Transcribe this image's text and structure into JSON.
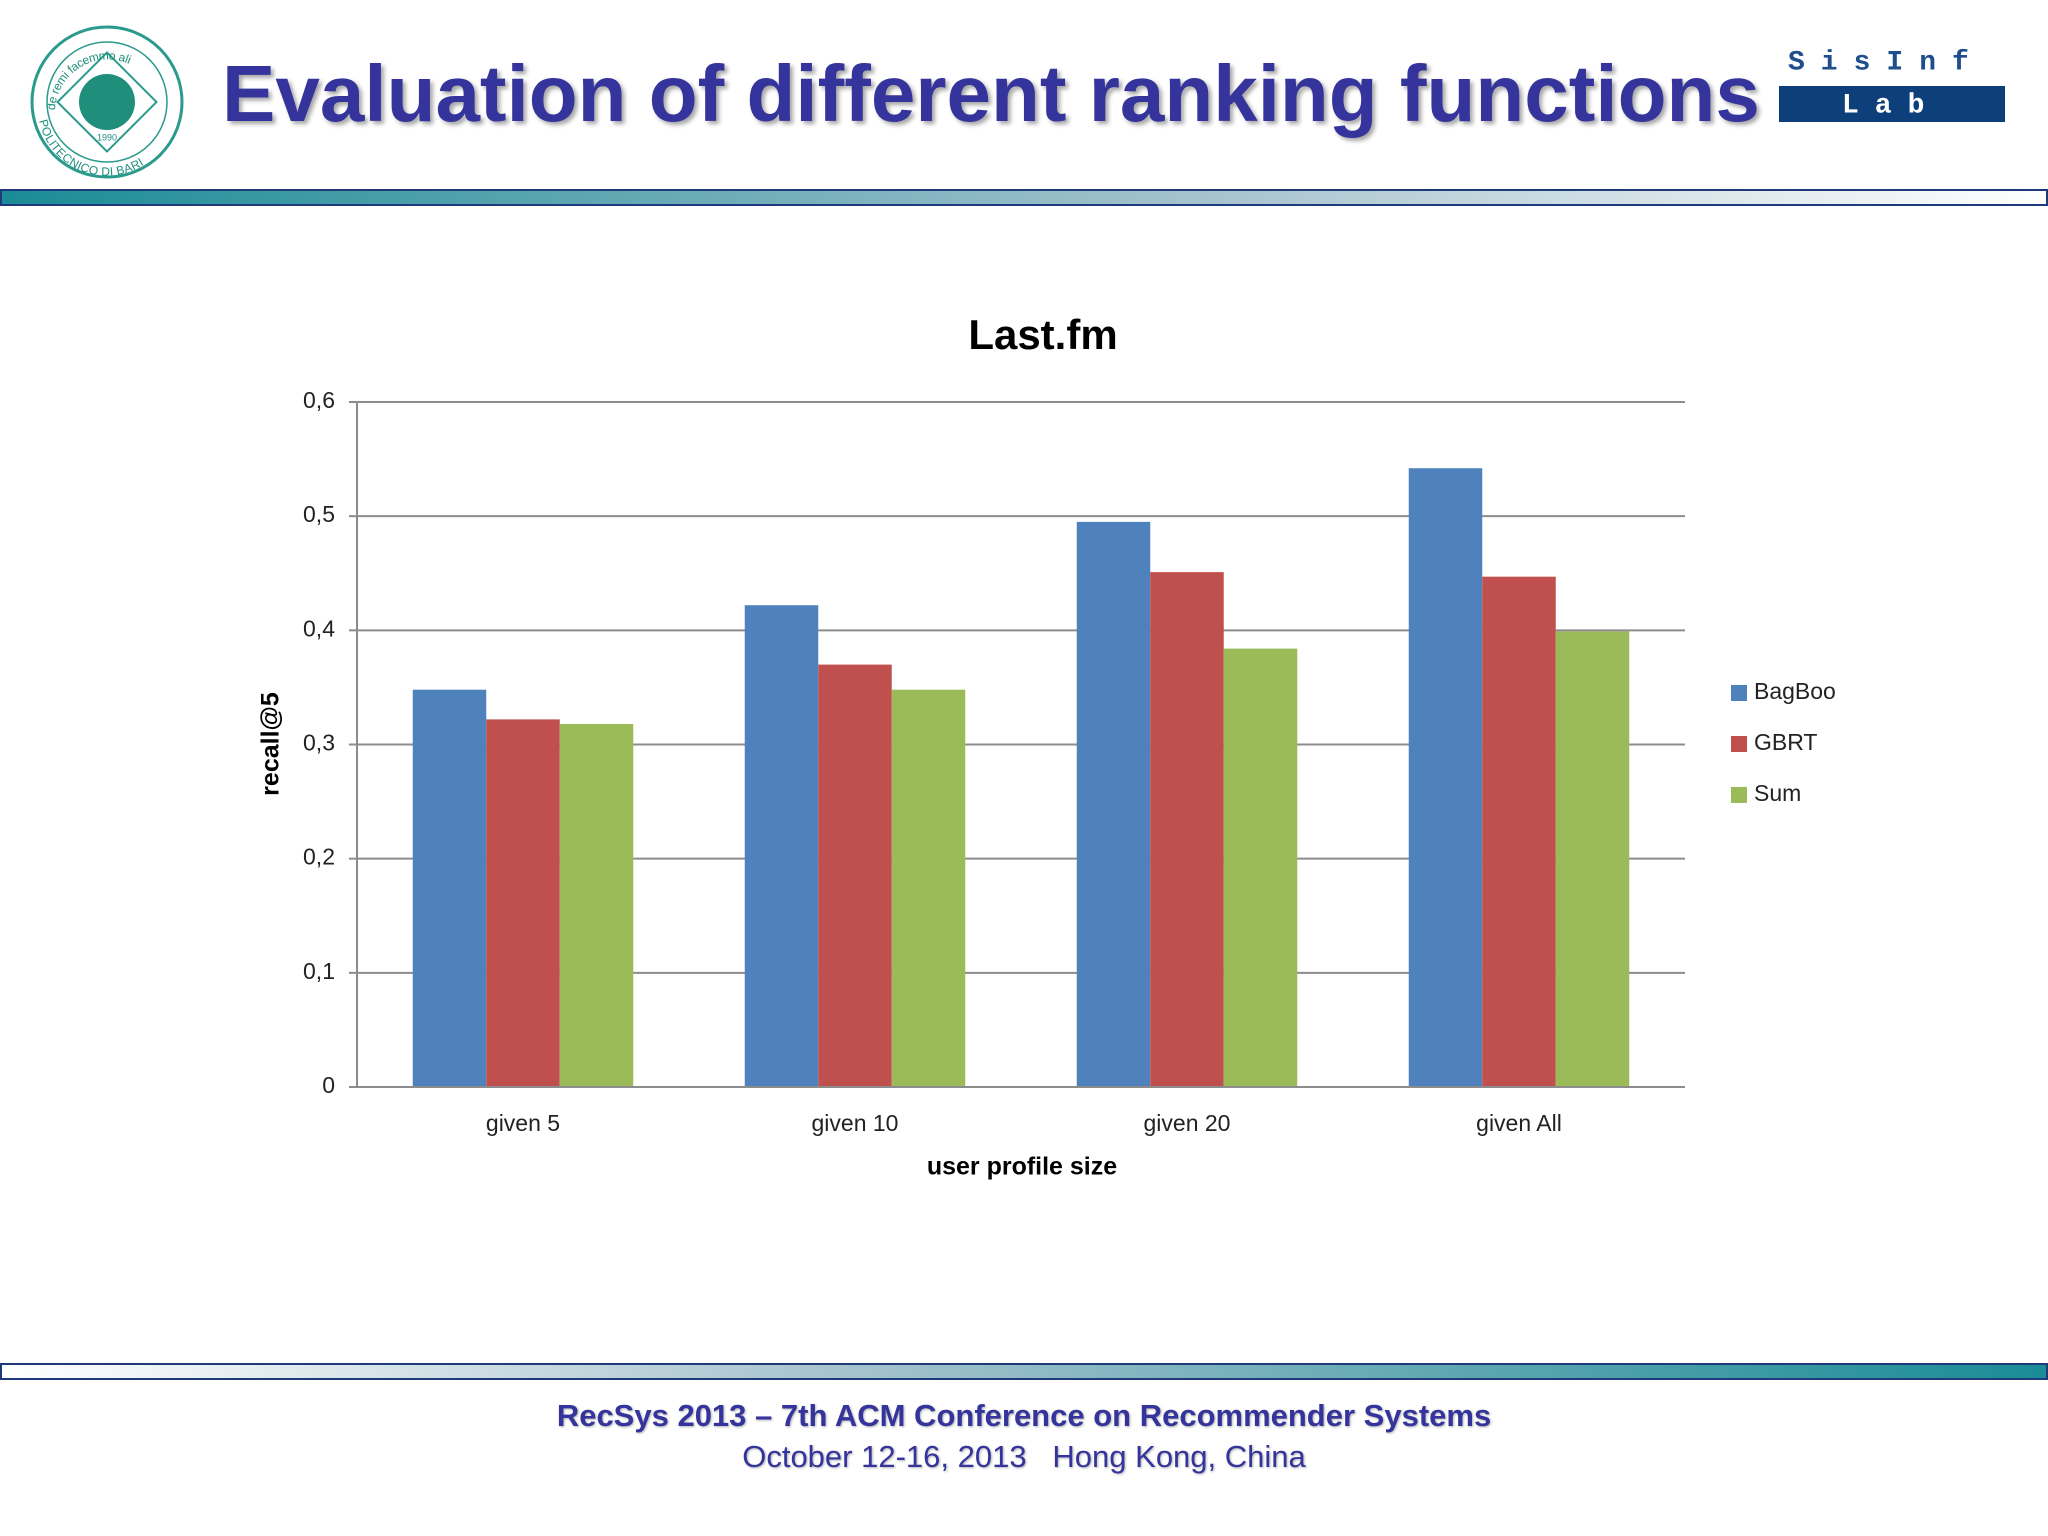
{
  "header": {
    "title": "Evaluation of different ranking functions",
    "left_logo": {
      "top_text": "de remi facemmo ali",
      "bottom_text": "POLITECNICO DI BARI",
      "year": "1990"
    },
    "right_logo": {
      "top_text": "SisInf",
      "bottom_text": "Lab"
    }
  },
  "chart_data": {
    "type": "bar",
    "title": "Last.fm",
    "x_label": "user profile size",
    "y_label": "recall@5",
    "categories": [
      "given 5",
      "given 10",
      "given 20",
      "given All"
    ],
    "series": [
      {
        "name": "BagBoo",
        "color": "#4f81bd",
        "values": [
          0.348,
          0.422,
          0.495,
          0.542
        ]
      },
      {
        "name": "GBRT",
        "color": "#c0504d",
        "values": [
          0.322,
          0.37,
          0.451,
          0.447
        ]
      },
      {
        "name": "Sum",
        "color": "#9bbb59",
        "values": [
          0.318,
          0.348,
          0.384,
          0.399
        ]
      }
    ],
    "ylim": [
      0,
      0.6
    ],
    "yticks": [
      0,
      {
        "value": 0.1,
        "label": "0,1"
      },
      {
        "value": 0.2,
        "label": "0,2"
      },
      {
        "value": 0.3,
        "label": "0,3"
      },
      {
        "value": 0.4,
        "label": "0,4"
      },
      {
        "value": 0.5,
        "label": "0,5"
      },
      {
        "value": 0.6,
        "label": "0,6"
      }
    ],
    "grid": true,
    "legend": "right"
  },
  "footer": {
    "line1": "RecSys 2013 – 7th ACM Conference on Recommender Systems",
    "line2": "October 12-16, 2013   Hong Kong, China"
  }
}
